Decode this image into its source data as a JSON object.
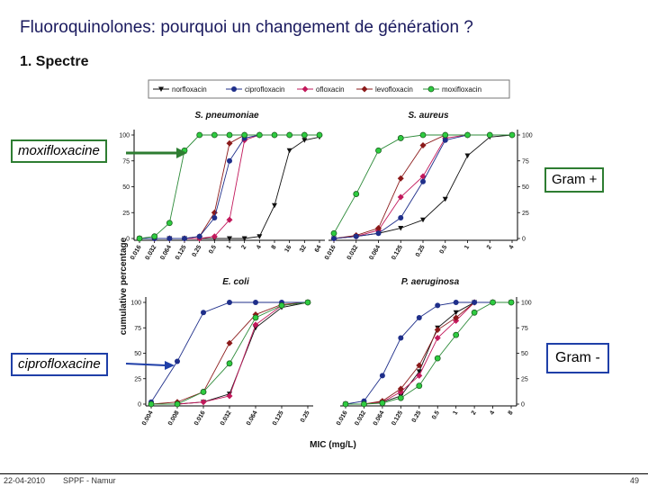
{
  "slide": {
    "title": "Fluoroquinolones: pourquoi un changement de génération ?",
    "subtitle": "1. Spectre",
    "date": "22-04-2010",
    "org": "SPPF - Namur",
    "page": "49"
  },
  "callouts": {
    "moxi": "moxifloxacine",
    "cipro": "ciprofloxacine",
    "gram_pos": "Gram +",
    "gram_neg": "Gram -"
  },
  "colors": {
    "title": "#1a1a5e",
    "callout_green": "#2e7d32",
    "callout_blue": "#1f3fa8",
    "norfloxacin": "#111111",
    "ciprofloxacin": "#1f2f8a",
    "ofloxacin": "#c2185b",
    "levofloxacin": "#8b1a1a",
    "moxifloxacin": "#2e8b3a"
  },
  "chart_data": {
    "type": "line",
    "ylabel": "cumulative percentage",
    "xlabel": "MIC (mg/L)",
    "legend": [
      "norfloxacin",
      "ciprofloxacin",
      "ofloxacin",
      "levofloxacin",
      "moxifloxacin"
    ],
    "panels": [
      {
        "name": "S. pneumoniae",
        "categories": [
          "0.016",
          "0.032",
          "0.064",
          "0.125",
          "0.25",
          "0.5",
          "1",
          "2",
          "4",
          "8",
          "16",
          "32",
          "64"
        ],
        "yticks": [
          0,
          25,
          50,
          75,
          100
        ],
        "series": [
          {
            "name": "norfloxacin",
            "values": [
              0,
              0,
              0,
              0,
              0,
              0,
              0,
              0,
              2,
              32,
              85,
              95,
              98
            ]
          },
          {
            "name": "ciprofloxacin",
            "values": [
              0,
              0,
              0,
              0,
              2,
              20,
              75,
              97,
              100,
              100,
              100,
              100,
              100
            ]
          },
          {
            "name": "ofloxacin",
            "values": [
              0,
              0,
              0,
              0,
              0,
              2,
              18,
              95,
              100,
              100,
              100,
              100,
              100
            ]
          },
          {
            "name": "levofloxacin",
            "values": [
              0,
              0,
              0,
              0,
              2,
              25,
              92,
              100,
              100,
              100,
              100,
              100,
              100
            ]
          },
          {
            "name": "moxifloxacin",
            "values": [
              0,
              2,
              15,
              85,
              100,
              100,
              100,
              100,
              100,
              100,
              100,
              100,
              100
            ]
          }
        ]
      },
      {
        "name": "S. aureus",
        "categories": [
          "0.016",
          "0.032",
          "0.064",
          "0.125",
          "0.25",
          "0.5",
          "1",
          "2",
          "4"
        ],
        "yticks": [
          0,
          25,
          50,
          75,
          100
        ],
        "series": [
          {
            "name": "norfloxacin",
            "values": [
              0,
              2,
              5,
              10,
              18,
              38,
              80,
              98,
              100
            ]
          },
          {
            "name": "ciprofloxacin",
            "values": [
              0,
              2,
              5,
              20,
              55,
              95,
              100,
              100,
              100
            ]
          },
          {
            "name": "ofloxacin",
            "values": [
              0,
              2,
              8,
              40,
              60,
              97,
              100,
              100,
              100
            ]
          },
          {
            "name": "levofloxacin",
            "values": [
              0,
              3,
              10,
              58,
              90,
              100,
              100,
              100,
              100
            ]
          },
          {
            "name": "moxifloxacin",
            "values": [
              5,
              43,
              85,
              97,
              100,
              100,
              100,
              100,
              100
            ]
          }
        ]
      },
      {
        "name": "E. coli",
        "categories": [
          "0.004",
          "0.008",
          "0.016",
          "0.032",
          "0.064",
          "0.125",
          "0.25"
        ],
        "yticks": [
          0,
          25,
          50,
          75,
          100
        ],
        "series": [
          {
            "name": "norfloxacin",
            "values": [
              0,
              0,
              2,
              10,
              75,
              95,
              100
            ]
          },
          {
            "name": "ciprofloxacin",
            "values": [
              2,
              42,
              90,
              100,
              100,
              100,
              100
            ]
          },
          {
            "name": "ofloxacin",
            "values": [
              0,
              0,
              2,
              8,
              78,
              97,
              100
            ]
          },
          {
            "name": "levofloxacin",
            "values": [
              0,
              2,
              12,
              60,
              88,
              98,
              100
            ]
          },
          {
            "name": "moxifloxacin",
            "values": [
              0,
              0,
              12,
              40,
              85,
              97,
              100
            ]
          }
        ]
      },
      {
        "name": "P. aeruginosa",
        "categories": [
          "0.016",
          "0.032",
          "0.064",
          "0.125",
          "0.25",
          "0.5",
          "1",
          "2",
          "4",
          "8"
        ],
        "yticks": [
          0,
          25,
          50,
          75,
          100
        ],
        "series": [
          {
            "name": "norfloxacin",
            "values": [
              0,
              0,
              2,
              8,
              32,
              75,
              90,
              100,
              100,
              100
            ]
          },
          {
            "name": "ciprofloxacin",
            "values": [
              0,
              3,
              28,
              65,
              85,
              97,
              100,
              100,
              100,
              100
            ]
          },
          {
            "name": "ofloxacin",
            "values": [
              0,
              0,
              2,
              12,
              28,
              65,
              82,
              100,
              100,
              100
            ]
          },
          {
            "name": "levofloxacin",
            "values": [
              0,
              0,
              3,
              15,
              38,
              73,
              85,
              100,
              100,
              100
            ]
          },
          {
            "name": "moxifloxacin",
            "values": [
              0,
              0,
              1,
              6,
              18,
              45,
              68,
              90,
              100,
              100
            ]
          }
        ]
      }
    ]
  }
}
